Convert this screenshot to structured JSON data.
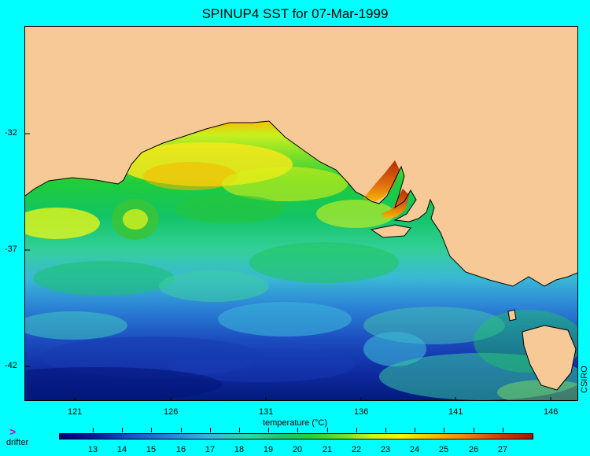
{
  "title": "SPINUP4 SST for 07-Mar-1999",
  "map": {
    "lat_ticks": [
      "-32",
      "-37",
      "-42"
    ],
    "lon_ticks": [
      "121",
      "126",
      "131",
      "136",
      "141",
      "146"
    ],
    "credit": "CSIRO",
    "colors": {
      "land": "#f7c997",
      "coastline": "#000000",
      "page_background": "#00ffff"
    }
  },
  "colorbar": {
    "title": "temperature (°C)",
    "labels": [
      "13",
      "14",
      "15",
      "16",
      "17",
      "18",
      "19",
      "20",
      "21",
      "22",
      "23",
      "24",
      "25",
      "26",
      "27"
    ]
  },
  "legend": {
    "marker": ">",
    "label": "drifter"
  }
}
